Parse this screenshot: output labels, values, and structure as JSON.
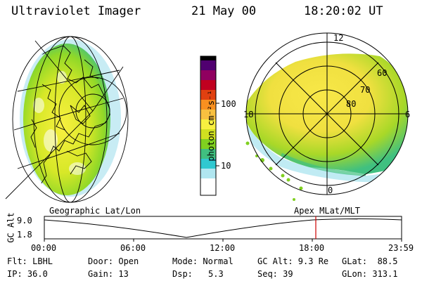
{
  "header": {
    "title": "Ultraviolet Imager",
    "date": "21 May 00",
    "time": "18:20:02 UT"
  },
  "colorbar": {
    "unit_label": "photon cm⁻²s⁻¹",
    "ticks": [
      "100",
      "10"
    ]
  },
  "polar_plot": {
    "mlt_labels": {
      "top": "12",
      "left": "18",
      "right": "6",
      "bottom": "0"
    },
    "lat_labels": [
      "60",
      "70",
      "80"
    ]
  },
  "map_labels": {
    "left": "Geographic Lat/Lon",
    "right": "Apex MLat/MLT"
  },
  "altitude_plot": {
    "ylabel": "GC Alt",
    "yticks": [
      "9.0",
      "1.8"
    ],
    "xticks": [
      "00:00",
      "06:00",
      "12:00",
      "18:00",
      "23:59"
    ],
    "current_time_marker": "18:20"
  },
  "info": {
    "flt": "Flt: LBHL",
    "ip": "IP: 36.0",
    "door": "Door: Open",
    "gain": "Gain: 13",
    "mode": "Mode: Normal",
    "dsp_label": "Dsp:",
    "dsp_value": "5.3",
    "gcalt": "GC Alt: 9.3 Re",
    "seq": "Seq: 39",
    "glat": "GLat:  88.5",
    "glon": "GLon: 313.1"
  },
  "colors": {
    "marker": "#cc0000",
    "colorbar": [
      "#ffffff",
      "#b0e6f0",
      "#30c8d0",
      "#40c080",
      "#80d020",
      "#d0e020",
      "#f8f040",
      "#f8c040",
      "#f89020",
      "#e04010",
      "#c00020",
      "#900060",
      "#500070",
      "#000000"
    ]
  }
}
